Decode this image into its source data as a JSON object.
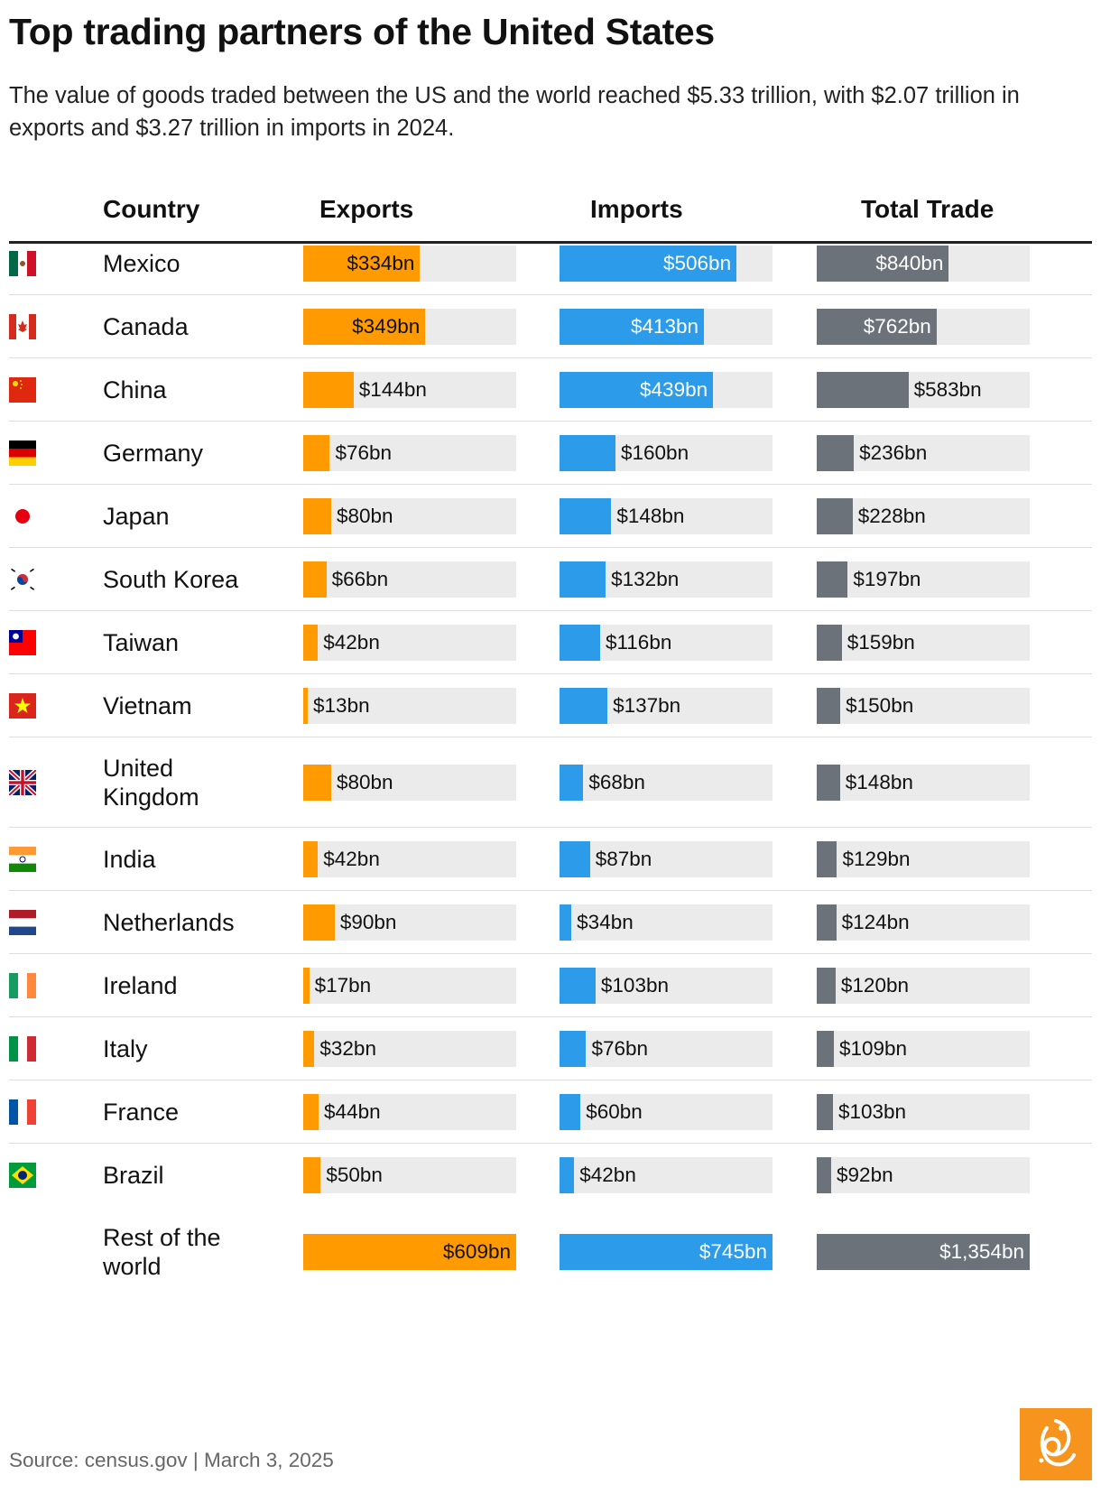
{
  "title": "Top trading partners of the United States",
  "subtitle": "The value of goods traded between the US and the world reached $5.33 trillion, with $2.07 trillion in exports and $3.27 trillion in imports in 2024.",
  "headers": {
    "country": "Country",
    "exports": "Exports",
    "imports": "Imports",
    "total": "Total Trade"
  },
  "source": "Source: census.gov | March 3, 2025",
  "colors": {
    "exports": "#ff9a00",
    "imports": "#2b9bea",
    "total": "#6b727a",
    "track": "#ebebeb"
  },
  "chart_data": {
    "type": "bar",
    "unit": "bn",
    "scale_max": 609,
    "total_scale_max": 1354,
    "series": [
      {
        "name": "Exports",
        "key": "exports"
      },
      {
        "name": "Imports",
        "key": "imports"
      },
      {
        "name": "Total Trade",
        "key": "total"
      }
    ],
    "rows": [
      {
        "country": "Mexico",
        "flag": "mexico-flag-icon",
        "exports": 334,
        "imports": 506,
        "total": 840,
        "exports_label": "$334bn",
        "imports_label": "$506bn",
        "total_label": "$840bn"
      },
      {
        "country": "Canada",
        "flag": "canada-flag-icon",
        "exports": 349,
        "imports": 413,
        "total": 762,
        "exports_label": "$349bn",
        "imports_label": "$413bn",
        "total_label": "$762bn"
      },
      {
        "country": "China",
        "flag": "china-flag-icon",
        "exports": 144,
        "imports": 439,
        "total": 583,
        "exports_label": "$144bn",
        "imports_label": "$439bn",
        "total_label": "$583bn"
      },
      {
        "country": "Germany",
        "flag": "germany-flag-icon",
        "exports": 76,
        "imports": 160,
        "total": 236,
        "exports_label": "$76bn",
        "imports_label": "$160bn",
        "total_label": "$236bn"
      },
      {
        "country": "Japan",
        "flag": "japan-flag-icon",
        "exports": 80,
        "imports": 148,
        "total": 228,
        "exports_label": "$80bn",
        "imports_label": "$148bn",
        "total_label": "$228bn"
      },
      {
        "country": "South Korea",
        "flag": "south-korea-flag-icon",
        "exports": 66,
        "imports": 132,
        "total": 197,
        "exports_label": "$66bn",
        "imports_label": "$132bn",
        "total_label": "$197bn"
      },
      {
        "country": "Taiwan",
        "flag": "taiwan-flag-icon",
        "exports": 42,
        "imports": 116,
        "total": 159,
        "exports_label": "$42bn",
        "imports_label": "$116bn",
        "total_label": "$159bn"
      },
      {
        "country": "Vietnam",
        "flag": "vietnam-flag-icon",
        "exports": 13,
        "imports": 137,
        "total": 150,
        "exports_label": "$13bn",
        "imports_label": "$137bn",
        "total_label": "$150bn"
      },
      {
        "country": "United Kingdom",
        "flag": "united-kingdom-flag-icon",
        "exports": 80,
        "imports": 68,
        "total": 148,
        "exports_label": "$80bn",
        "imports_label": "$68bn",
        "total_label": "$148bn"
      },
      {
        "country": "India",
        "flag": "india-flag-icon",
        "exports": 42,
        "imports": 87,
        "total": 129,
        "exports_label": "$42bn",
        "imports_label": "$87bn",
        "total_label": "$129bn"
      },
      {
        "country": "Netherlands",
        "flag": "netherlands-flag-icon",
        "exports": 90,
        "imports": 34,
        "total": 124,
        "exports_label": "$90bn",
        "imports_label": "$34bn",
        "total_label": "$124bn"
      },
      {
        "country": "Ireland",
        "flag": "ireland-flag-icon",
        "exports": 17,
        "imports": 103,
        "total": 120,
        "exports_label": "$17bn",
        "imports_label": "$103bn",
        "total_label": "$120bn"
      },
      {
        "country": "Italy",
        "flag": "italy-flag-icon",
        "exports": 32,
        "imports": 76,
        "total": 109,
        "exports_label": "$32bn",
        "imports_label": "$76bn",
        "total_label": "$109bn"
      },
      {
        "country": "France",
        "flag": "france-flag-icon",
        "exports": 44,
        "imports": 60,
        "total": 103,
        "exports_label": "$44bn",
        "imports_label": "$60bn",
        "total_label": "$103bn"
      },
      {
        "country": "Brazil",
        "flag": "brazil-flag-icon",
        "exports": 50,
        "imports": 42,
        "total": 92,
        "exports_label": "$50bn",
        "imports_label": "$42bn",
        "total_label": "$92bn"
      },
      {
        "country": "Rest of the world",
        "flag": "",
        "exports": 609,
        "imports": 745,
        "total": 1354,
        "exports_label": "$609bn",
        "imports_label": "$745bn",
        "total_label": "$1,354bn"
      }
    ]
  }
}
